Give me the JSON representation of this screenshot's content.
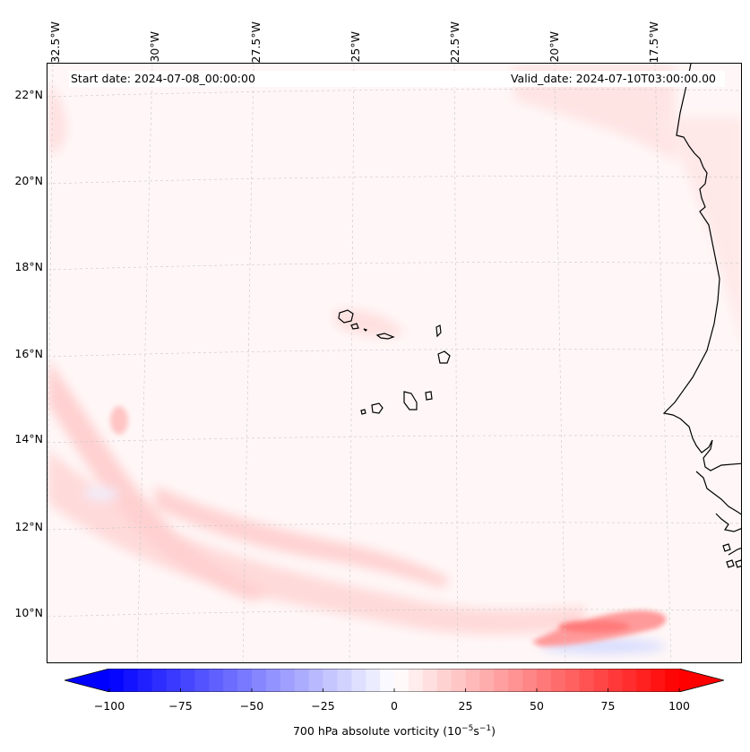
{
  "map": {
    "start_date": "Start date: 2024-07-08_00:00:00",
    "valid_date": "Valid_date: 2024-07-10T03:00:00.00",
    "lon_labels": [
      "32.5°W",
      "30°W",
      "27.5°W",
      "25°W",
      "22.5°W",
      "20°W",
      "17.5°W"
    ],
    "lat_labels": [
      "22°N",
      "20°N",
      "18°N",
      "16°N",
      "14°N",
      "12°N",
      "10°N"
    ],
    "extent": {
      "lon_min": -32.7,
      "lon_max": -15.7,
      "lat_min": 8.9,
      "lat_max": 22.8
    }
  },
  "colorbar": {
    "label_prefix": "700 hPa absolute vorticity (10",
    "label_exp1": "−5",
    "label_mid": "s",
    "label_exp2": "−1",
    "label_suffix": ")",
    "ticks": [
      "−100",
      "−75",
      "−50",
      "−25",
      "0",
      "25",
      "50",
      "75",
      "100"
    ],
    "range": [
      -100,
      100
    ],
    "colors": {
      "negative": "#0000ff",
      "neutral": "#ffffff",
      "positive": "#ff0000"
    }
  }
}
